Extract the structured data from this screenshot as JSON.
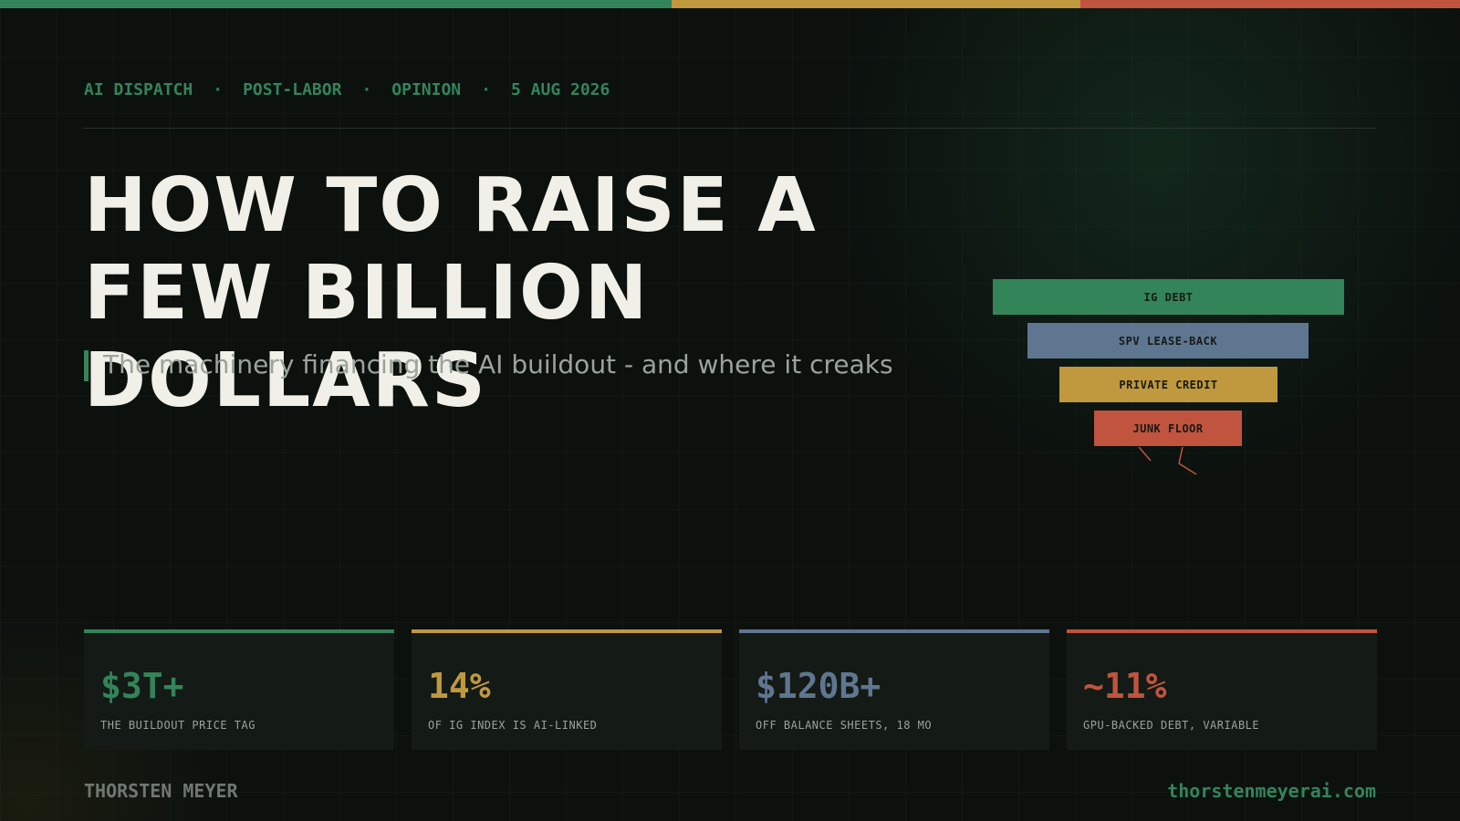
{
  "header": {
    "kicker": [
      "AI DISPATCH",
      "POST-LABOR",
      "OPINION",
      "5 AUG 2026"
    ],
    "separator": "·"
  },
  "title": "HOW TO RAISE A FEW BILLION DOLLARS",
  "subtitle": "The machinery financing the AI buildout - and where it creaks",
  "stack": {
    "layers": [
      {
        "label": "IG DEBT"
      },
      {
        "label": "SPV LEASE-BACK"
      },
      {
        "label": "PRIVATE CREDIT"
      },
      {
        "label": "JUNK FLOOR"
      }
    ]
  },
  "stats": [
    {
      "value": "$3T+",
      "label": "THE BUILDOUT PRICE TAG"
    },
    {
      "value": "14%",
      "label": "OF IG INDEX IS AI-LINKED"
    },
    {
      "value": "$120B+",
      "label": "OFF BALANCE SHEETS, 18 MO"
    },
    {
      "value": "~11%",
      "label": "GPU-BACKED DEBT, VARIABLE"
    }
  ],
  "footer": {
    "author": "THORSTEN MEYER",
    "site": "thorstenmeyerai.com"
  }
}
